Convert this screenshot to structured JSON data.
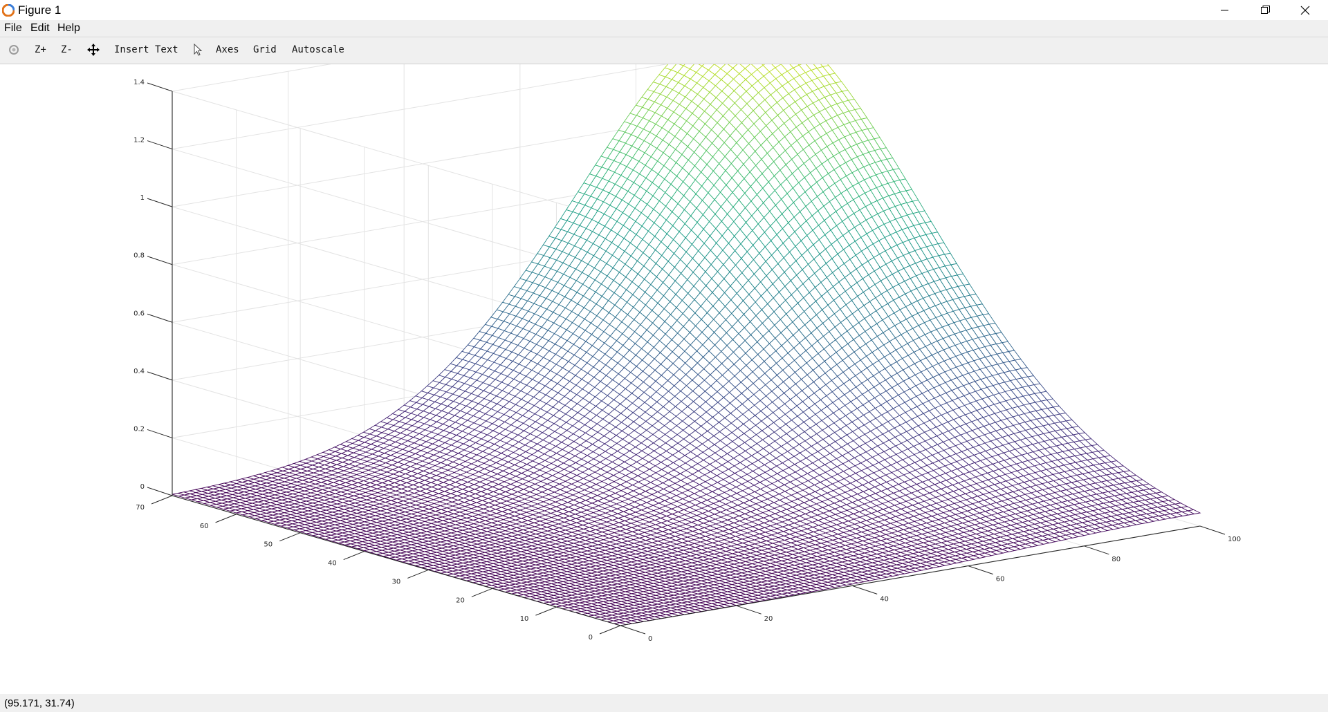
{
  "window": {
    "title": "Figure 1"
  },
  "menu": {
    "items": [
      "File",
      "Edit",
      "Help"
    ]
  },
  "toolbar": {
    "zoom_in": "Z+",
    "zoom_out": "Z-",
    "insert_text": "Insert Text",
    "axes": "Axes",
    "grid": "Grid",
    "autoscale": "Autoscale"
  },
  "status": {
    "coordinates": "(95.171, 31.74)"
  },
  "chart_data": {
    "type": "surface",
    "colormap": "viridis",
    "grid": true,
    "x_range": [
      0,
      100
    ],
    "y_range": [
      0,
      70
    ],
    "z_range": [
      0,
      1.4
    ],
    "x_ticks": [
      "0",
      "20",
      "40",
      "60",
      "80",
      "100"
    ],
    "y_ticks": [
      "0",
      "10",
      "20",
      "30",
      "40",
      "50",
      "60",
      "70"
    ],
    "z_ticks": [
      "0",
      "0.2",
      "0.4",
      "0.6",
      "0.8",
      "1",
      "1.2",
      "1.4"
    ],
    "peak": {
      "x": 100,
      "y": 70,
      "z": 1.35
    }
  }
}
